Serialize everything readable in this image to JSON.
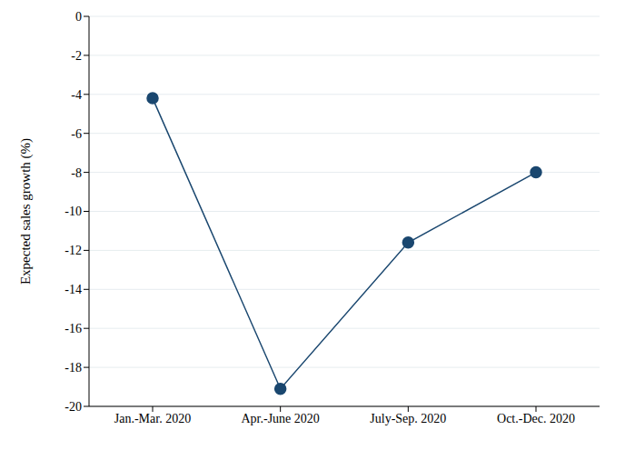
{
  "chart_data": {
    "type": "line",
    "y_label": "Expected sales growth (%)",
    "categories": [
      "Jan.-Mar. 2020",
      "Apr.-June 2020",
      "July-Sep. 2020",
      "Oct.-Dec. 2020"
    ],
    "values": [
      -4.2,
      -19.1,
      -11.6,
      -8.0
    ],
    "color": "#1a476f",
    "marker": "circle",
    "ylim": [
      -20,
      0
    ],
    "yticks": [
      -20,
      -18,
      -16,
      -14,
      -12,
      -10,
      -8,
      -6,
      -4,
      -2,
      0
    ],
    "grid": true
  }
}
